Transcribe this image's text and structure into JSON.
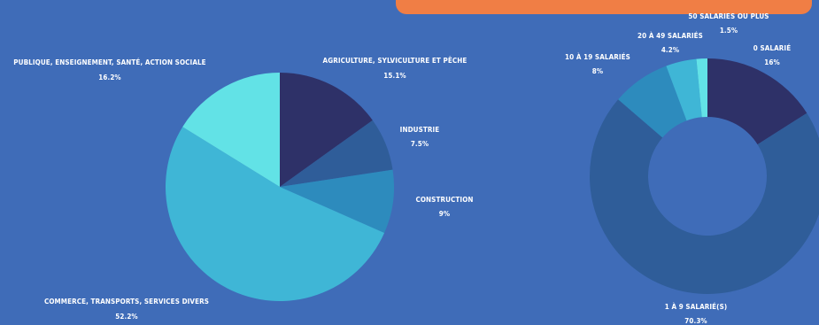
{
  "chart_data": [
    {
      "type": "pie",
      "categories": [
        "AGRICULTURE, SYLVICULTURE ET PÊCHE",
        "INDUSTRIE",
        "CONSTRUCTION",
        "COMMERCE, TRANSPORTS, SERVICES DIVERS",
        "PUBLIQUE, ENSEIGNEMENT, SANTÉ, ACTION SOCIALE"
      ],
      "values": [
        15.1,
        7.5,
        9,
        52.2,
        16.2
      ],
      "value_labels": [
        "15.1%",
        "7.5%",
        "9%",
        "52.2%",
        "16.2%"
      ],
      "colors": [
        "#2e3168",
        "#2f5d99",
        "#2d8bbd",
        "#3fb6d6",
        "#62e2e6"
      ]
    },
    {
      "type": "pie",
      "donut": true,
      "categories": [
        "0 SALARIÉ",
        "1 À 9 SALARIÉ(S)",
        "10 À 19 SALARIÉS",
        "20 À 49 SALARIÉS",
        "50 SALARIES OU PLUS"
      ],
      "values": [
        16,
        70.3,
        8,
        4.2,
        1.5
      ],
      "value_labels": [
        "16%",
        "70.3%",
        "8%",
        "4.2%",
        "1.5%"
      ],
      "colors": [
        "#2e3168",
        "#2f5d99",
        "#2d8bbd",
        "#3fb6d6",
        "#62e2e6"
      ]
    }
  ]
}
